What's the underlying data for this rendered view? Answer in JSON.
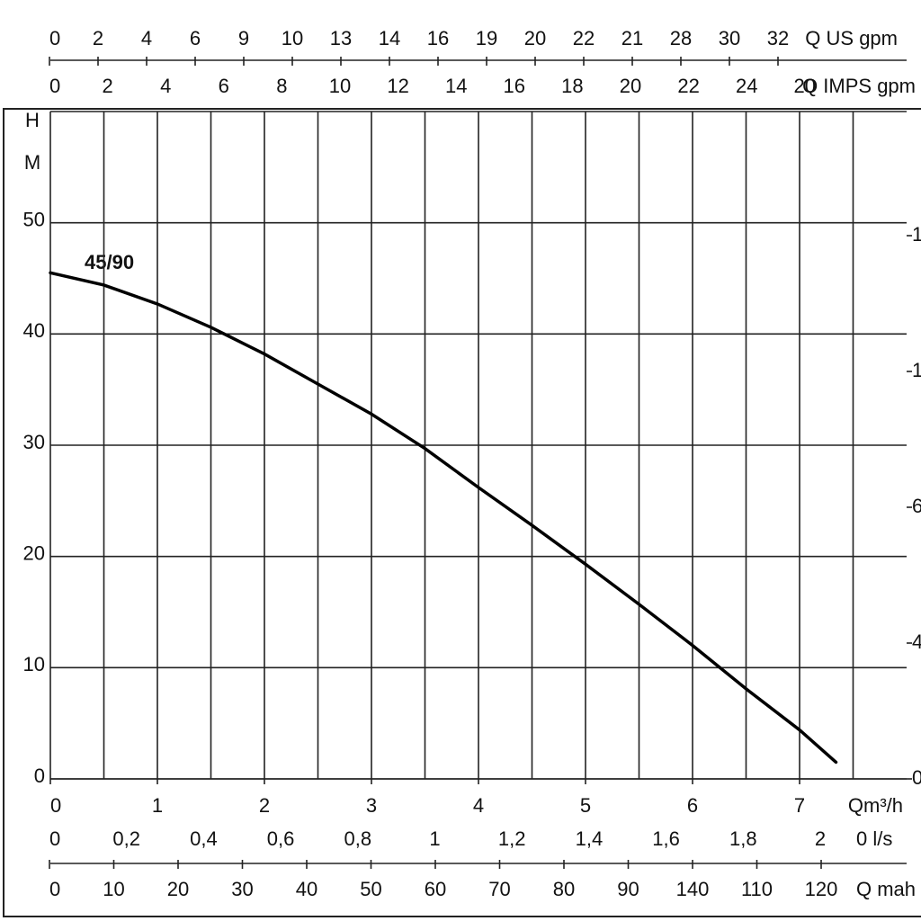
{
  "chart_data": {
    "type": "line",
    "annotation": "45/90",
    "y_label": [
      "H",
      "M"
    ],
    "x_label": "Qm³/h",
    "x": [
      0,
      0.5,
      1,
      1.5,
      2,
      2.5,
      3,
      3.5,
      4,
      4.5,
      5,
      5.5,
      6,
      6.5,
      7,
      7.34
    ],
    "series": [
      {
        "name": "45/90",
        "color": "#000000",
        "values": [
          45.5,
          44.4,
          42.7,
          40.6,
          38.2,
          35.5,
          32.8,
          29.7,
          26.2,
          22.8,
          19.3,
          15.7,
          12.0,
          8.1,
          4.4,
          1.5
        ]
      }
    ],
    "xlim": [
      0,
      8
    ],
    "xticks": [
      0,
      1,
      2,
      3,
      4,
      5,
      6,
      7
    ],
    "xgrid": [
      0.5,
      1,
      1.5,
      2,
      2.5,
      3,
      3.5,
      4,
      4.5,
      5,
      5.5,
      6,
      6.5,
      7,
      7.5
    ],
    "ylim": [
      0,
      60
    ],
    "yticks": [
      0,
      10,
      20,
      30,
      40,
      50
    ],
    "grid": true,
    "right_axis_labels": [
      "0",
      "4",
      "6",
      "1",
      "1"
    ],
    "aux_axes": [
      {
        "label": "Q US gpm",
        "ticks": [
          "0",
          "2",
          "4",
          "6",
          "9",
          "10",
          "13",
          "14",
          "16",
          "19",
          "20",
          "22",
          "21",
          "28",
          "30",
          "32"
        ]
      },
      {
        "label": "Q IMPS gpm",
        "ticks": [
          "0",
          "2",
          "4",
          "6",
          "8",
          "10",
          "12",
          "14",
          "16",
          "18",
          "20",
          "22",
          "24",
          "20"
        ]
      },
      {
        "label": "0 l/s",
        "ticks": [
          "0",
          "0,2",
          "0,4",
          "0,6",
          "0,8",
          "1",
          "1,2",
          "1,4",
          "1,6",
          "1,8",
          "2"
        ]
      },
      {
        "label": "Q mah",
        "ticks": [
          "0",
          "10",
          "20",
          "30",
          "40",
          "50",
          "60",
          "70",
          "80",
          "90",
          "140",
          "110",
          "120"
        ]
      }
    ]
  }
}
